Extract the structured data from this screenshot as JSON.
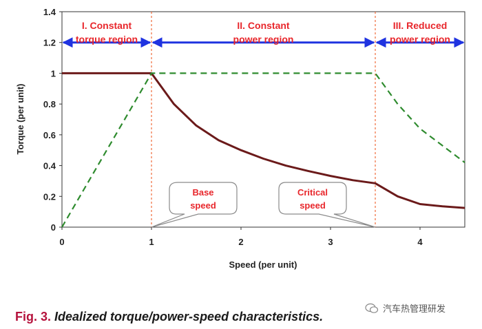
{
  "chart_data": {
    "type": "line",
    "ylabel": "Torque (per unit)",
    "xlabel": "Speed (per unit)",
    "xlim": [
      0,
      4.5
    ],
    "ylim": [
      0,
      1.4
    ],
    "x_ticks": [
      "0",
      "1",
      "2",
      "3",
      "4"
    ],
    "y_ticks": [
      "0",
      "0.2",
      "0.4",
      "0.6",
      "0.8",
      "1",
      "1.2",
      "1.4"
    ],
    "grid": false,
    "series": [
      {
        "style": "solid",
        "color": "#6b1a1a",
        "points": [
          [
            0,
            1.0
          ],
          [
            1.0,
            1.0
          ],
          [
            1.25,
            0.8
          ],
          [
            1.5,
            0.66
          ],
          [
            1.75,
            0.565
          ],
          [
            2.0,
            0.5
          ],
          [
            2.25,
            0.445
          ],
          [
            2.5,
            0.4
          ],
          [
            2.75,
            0.365
          ],
          [
            3.0,
            0.333
          ],
          [
            3.25,
            0.305
          ],
          [
            3.5,
            0.285
          ],
          [
            3.75,
            0.2
          ],
          [
            4.0,
            0.15
          ],
          [
            4.25,
            0.135
          ],
          [
            4.5,
            0.125
          ]
        ]
      },
      {
        "style": "dashed",
        "color": "#2e8b2e",
        "points": [
          [
            0,
            0.0
          ],
          [
            1.0,
            1.0
          ],
          [
            3.5,
            1.0
          ],
          [
            3.75,
            0.8
          ],
          [
            4.0,
            0.64
          ],
          [
            4.25,
            0.53
          ],
          [
            4.5,
            0.42
          ]
        ]
      }
    ],
    "region_dividers": [
      1.0,
      3.5
    ],
    "regions": [
      {
        "label_line1": "I. Constant",
        "label_line2": "torque region",
        "x_from": 0,
        "x_to": 1.0
      },
      {
        "label_line1": "II. Constant",
        "label_line2": "power region",
        "x_from": 1.0,
        "x_to": 3.5
      },
      {
        "label_line1": "III. Reduced",
        "label_line2": "power region",
        "x_from": 3.5,
        "x_to": 4.5
      }
    ],
    "region_arrow_y": 1.2,
    "annotations": [
      {
        "line1": "Base",
        "line2": "speed",
        "points_to_x": 1.0
      },
      {
        "line1": "Critical",
        "line2": "speed",
        "points_to_x": 3.5
      }
    ]
  },
  "caption": {
    "fig_label": "Fig. 3.",
    "text": "Idealized torque/power-speed characteristics."
  },
  "watermark": {
    "text": "汽车热管理研发"
  },
  "colors": {
    "torque_line": "#6b1a1a",
    "power_line": "#2e8b2e",
    "region_arrows": "#1f33e0",
    "dividers": "#f06a3a",
    "labels_red": "#e8262b",
    "caption_red": "#b5123c"
  }
}
